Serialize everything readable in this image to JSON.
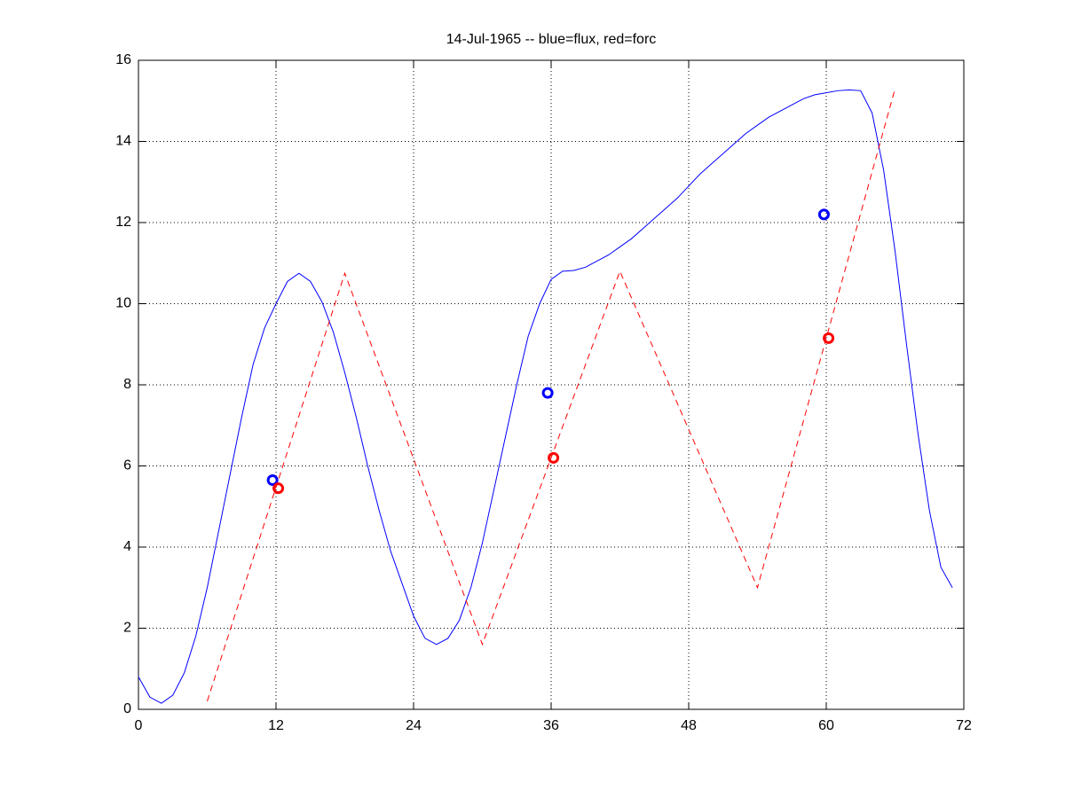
{
  "chart_data": {
    "type": "line",
    "title": "14-Jul-1965 -- blue=flux, red=forc",
    "xlim": [
      0,
      72
    ],
    "xticks": [
      0,
      12,
      24,
      36,
      48,
      60,
      72
    ],
    "ylim": [
      0,
      16
    ],
    "yticks": [
      0,
      2,
      4,
      6,
      8,
      10,
      12,
      14,
      16
    ],
    "grid": true,
    "series": [
      {
        "color": "#0000ff",
        "style": "solid",
        "x": [
          0,
          1,
          2,
          3,
          4,
          5,
          6,
          7,
          8,
          9,
          10,
          11,
          12,
          13,
          14,
          15,
          16,
          17,
          18,
          19,
          20,
          21,
          22,
          23,
          24,
          25,
          26,
          27,
          28,
          29,
          30,
          31,
          32,
          33,
          34,
          35,
          36,
          37,
          38,
          39,
          40,
          41,
          42,
          43,
          44,
          45,
          46,
          47,
          48,
          49,
          50,
          51,
          52,
          53,
          54,
          55,
          56,
          57,
          58,
          59,
          60,
          61,
          62,
          63,
          64,
          65,
          66,
          67,
          68,
          69,
          70,
          71
        ],
        "values": [
          0.8,
          0.3,
          0.15,
          0.35,
          0.9,
          1.8,
          3.0,
          4.4,
          5.8,
          7.2,
          8.5,
          9.4,
          10.0,
          10.55,
          10.75,
          10.55,
          10.05,
          9.3,
          8.3,
          7.2,
          6.0,
          4.9,
          3.9,
          3.1,
          2.3,
          1.75,
          1.6,
          1.75,
          2.2,
          3.0,
          4.1,
          5.4,
          6.7,
          8.0,
          9.2,
          10.0,
          10.6,
          10.8,
          10.82,
          10.9,
          11.05,
          11.2,
          11.4,
          11.6,
          11.85,
          12.1,
          12.35,
          12.6,
          12.9,
          13.2,
          13.45,
          13.7,
          13.95,
          14.2,
          14.4,
          14.6,
          14.75,
          14.9,
          15.05,
          15.15,
          15.2,
          15.25,
          15.27,
          15.25,
          14.7,
          13.3,
          11.3,
          9.0,
          6.8,
          4.9,
          3.5,
          3.0
        ]
      },
      {
        "color": "#ff0000",
        "style": "dashed",
        "x": [
          6,
          18,
          30,
          42,
          54,
          66
        ],
        "values": [
          0.2,
          10.75,
          1.6,
          10.8,
          3.0,
          15.3
        ]
      },
      {
        "color": "#0000ff",
        "style": "markers",
        "x": [
          11.7,
          35.7,
          59.8
        ],
        "values": [
          5.65,
          7.8,
          12.2
        ]
      },
      {
        "color": "#ff0000",
        "style": "markers",
        "x": [
          12.2,
          36.2,
          60.2
        ],
        "values": [
          5.45,
          6.2,
          9.15
        ]
      }
    ]
  }
}
